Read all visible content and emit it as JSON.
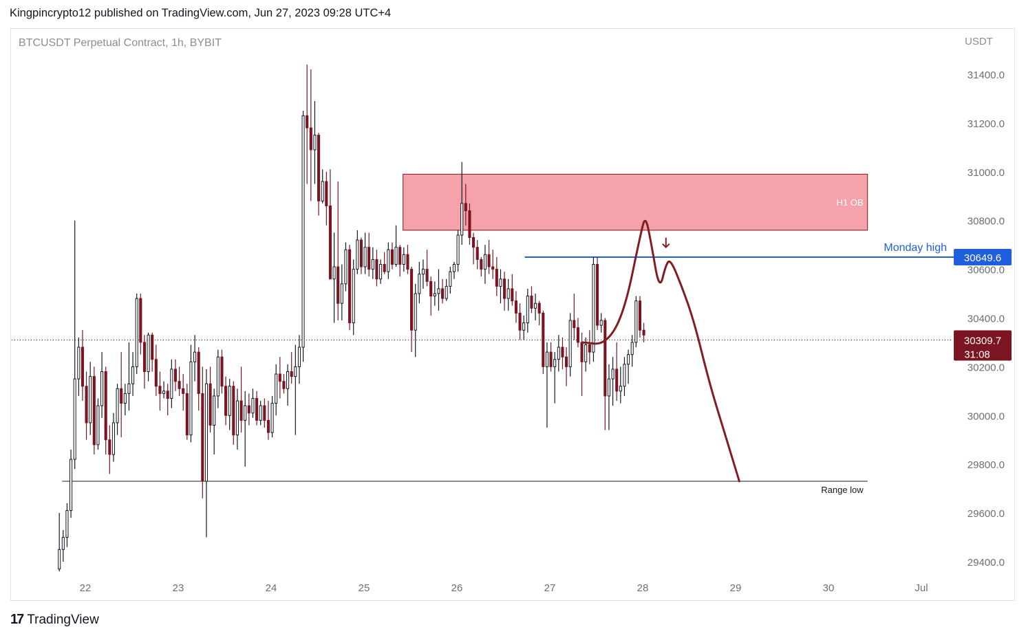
{
  "header": {
    "published_line": "Kingpincrypto12 published on TradingView.com, Jun 27, 2023 09:28 UTC+4"
  },
  "chart_title": "BTCUSDT Perpetual Contract, 1h, BYBIT",
  "currency": "USDT",
  "footer": {
    "logo_mark": "17",
    "brand": "TradingView"
  },
  "colors": {
    "up": "#131722",
    "down": "#7a1521",
    "ob_fill": "#f28b95",
    "ob_stroke": "#7a1521",
    "monday_line": "#1f5fdd",
    "price_badge": "#7a1521",
    "projection": "#7f1d22"
  },
  "chart_data": {
    "type": "candlestick",
    "title": "BTCUSDT Perpetual Contract, 1h, BYBIT",
    "ylim": [
      29300,
      31500
    ],
    "y_ticks": [
      29400,
      29600,
      29800,
      30000,
      30200,
      30400,
      30600,
      30800,
      31000,
      31200,
      31400
    ],
    "y_tick_labels": [
      "29400.0",
      "29600.0",
      "29800.0",
      "30000.0",
      "30200.0",
      "30400.0",
      "30600.0",
      "30800.0",
      "31000.0",
      "31200.0",
      "31400.0"
    ],
    "x_ticks": [
      {
        "t": 22,
        "label": "22"
      },
      {
        "t": 23,
        "label": "23"
      },
      {
        "t": 24,
        "label": "24"
      },
      {
        "t": 25,
        "label": "25"
      },
      {
        "t": 26,
        "label": "26"
      },
      {
        "t": 27,
        "label": "27"
      },
      {
        "t": 28,
        "label": "28"
      },
      {
        "t": 29,
        "label": "29"
      },
      {
        "t": 30,
        "label": "30"
      },
      {
        "t": 31,
        "label": "Jul"
      }
    ],
    "xlim_days": [
      21.3,
      31.2
    ],
    "candles_start_day": 21.72,
    "candle_interval_hours": 1,
    "ohlc": [
      [
        29370,
        29600,
        29360,
        29450
      ],
      [
        29450,
        29530,
        29400,
        29500
      ],
      [
        29500,
        29640,
        29460,
        29610
      ],
      [
        29610,
        29860,
        29580,
        29820
      ],
      [
        29820,
        30800,
        29780,
        30150
      ],
      [
        30150,
        30320,
        30080,
        30280
      ],
      [
        30280,
        30350,
        30060,
        30120
      ],
      [
        30120,
        30180,
        29900,
        29970
      ],
      [
        29970,
        30220,
        29920,
        30160
      ],
      [
        30160,
        30200,
        29840,
        29880
      ],
      [
        29880,
        30070,
        29860,
        30040
      ],
      [
        30040,
        30260,
        29990,
        30180
      ],
      [
        30180,
        30200,
        29840,
        29900
      ],
      [
        29900,
        29960,
        29760,
        29840
      ],
      [
        29840,
        30010,
        29810,
        29970
      ],
      [
        29970,
        30130,
        29920,
        30110
      ],
      [
        30110,
        30260,
        29910,
        30050
      ],
      [
        30050,
        30130,
        30000,
        30090
      ],
      [
        30090,
        30300,
        30020,
        30130
      ],
      [
        30130,
        30260,
        30080,
        30200
      ],
      [
        30200,
        30500,
        30170,
        30480
      ],
      [
        30480,
        30500,
        30250,
        30300
      ],
      [
        30300,
        30330,
        30110,
        30180
      ],
      [
        30180,
        30340,
        30140,
        30330
      ],
      [
        30330,
        30340,
        30180,
        30230
      ],
      [
        30230,
        30290,
        30080,
        30120
      ],
      [
        30120,
        30180,
        30020,
        30090
      ],
      [
        30090,
        30140,
        30070,
        30100
      ],
      [
        30100,
        30130,
        30000,
        30070
      ],
      [
        30070,
        30230,
        30030,
        30190
      ],
      [
        30190,
        30230,
        30100,
        30140
      ],
      [
        30140,
        30200,
        30080,
        30110
      ],
      [
        30110,
        30170,
        30020,
        30090
      ],
      [
        30090,
        30130,
        29900,
        29920
      ],
      [
        29920,
        30290,
        29890,
        30220
      ],
      [
        30220,
        30330,
        30140,
        30260
      ],
      [
        30260,
        30280,
        30020,
        30090
      ],
      [
        30090,
        30200,
        29660,
        29730
      ],
      [
        29730,
        30190,
        29500,
        30130
      ],
      [
        30130,
        30200,
        29930,
        29960
      ],
      [
        29960,
        30110,
        29840,
        30080
      ],
      [
        30080,
        30270,
        30030,
        30240
      ],
      [
        30240,
        30270,
        30090,
        30120
      ],
      [
        30120,
        30160,
        29960,
        30000
      ],
      [
        30000,
        30150,
        29940,
        30120
      ],
      [
        30120,
        30140,
        29880,
        29920
      ],
      [
        29920,
        30110,
        29860,
        30060
      ],
      [
        30060,
        30200,
        29930,
        29980
      ],
      [
        29980,
        30100,
        29790,
        30040
      ],
      [
        30040,
        30090,
        29960,
        30010
      ],
      [
        30010,
        30110,
        29990,
        30070
      ],
      [
        30070,
        30100,
        29960,
        29980
      ],
      [
        29980,
        30060,
        29960,
        30040
      ],
      [
        30040,
        30070,
        29950,
        29980
      ],
      [
        29980,
        30060,
        29900,
        29930
      ],
      [
        29930,
        30080,
        29910,
        30050
      ],
      [
        30050,
        30210,
        30000,
        30170
      ],
      [
        30170,
        30240,
        30070,
        30140
      ],
      [
        30140,
        30170,
        30090,
        30110
      ],
      [
        30110,
        30210,
        30040,
        30180
      ],
      [
        30180,
        30260,
        30130,
        30160
      ],
      [
        30160,
        30290,
        29920,
        30200
      ],
      [
        30200,
        30330,
        30130,
        30280
      ],
      [
        30280,
        31250,
        30220,
        31230
      ],
      [
        31230,
        31440,
        30950,
        31180
      ],
      [
        31180,
        31420,
        30880,
        31090
      ],
      [
        31090,
        31290,
        30950,
        31150
      ],
      [
        31150,
        31160,
        30820,
        30880
      ],
      [
        30880,
        31010,
        30870,
        30960
      ],
      [
        30960,
        31000,
        30780,
        30860
      ],
      [
        30860,
        31010,
        30570,
        30560
      ],
      [
        30560,
        30750,
        30380,
        30610
      ],
      [
        30610,
        30960,
        30390,
        30460
      ],
      [
        30460,
        30620,
        30390,
        30540
      ],
      [
        30540,
        30710,
        30510,
        30680
      ],
      [
        30680,
        30700,
        30350,
        30380
      ],
      [
        30380,
        30640,
        30330,
        30600
      ],
      [
        30600,
        30760,
        30580,
        30720
      ],
      [
        30720,
        30730,
        30580,
        30610
      ],
      [
        30610,
        30750,
        30580,
        30690
      ],
      [
        30690,
        30750,
        30570,
        30600
      ],
      [
        30600,
        30690,
        30560,
        30640
      ],
      [
        30640,
        30680,
        30530,
        30560
      ],
      [
        30560,
        30640,
        30540,
        30620
      ],
      [
        30620,
        30670,
        30580,
        30590
      ],
      [
        30590,
        30710,
        30560,
        30680
      ],
      [
        30680,
        30710,
        30600,
        30620
      ],
      [
        30620,
        30780,
        30610,
        30690
      ],
      [
        30690,
        30700,
        30570,
        30620
      ],
      [
        30620,
        30690,
        30590,
        30660
      ],
      [
        30660,
        30700,
        30580,
        30600
      ],
      [
        30600,
        30610,
        30260,
        30350
      ],
      [
        30350,
        30540,
        30240,
        30500
      ],
      [
        30500,
        30630,
        30460,
        30580
      ],
      [
        30580,
        30640,
        30520,
        30600
      ],
      [
        30600,
        30680,
        30530,
        30550
      ],
      [
        30550,
        30570,
        30410,
        30490
      ],
      [
        30490,
        30550,
        30450,
        30500
      ],
      [
        30500,
        30600,
        30430,
        30520
      ],
      [
        30520,
        30560,
        30460,
        30480
      ],
      [
        30480,
        30560,
        30470,
        30530
      ],
      [
        30530,
        30610,
        30500,
        30590
      ],
      [
        30590,
        30630,
        30560,
        30620
      ],
      [
        30620,
        30760,
        30590,
        30740
      ],
      [
        30740,
        31040,
        30700,
        30870
      ],
      [
        30870,
        30950,
        30780,
        30840
      ],
      [
        30840,
        30870,
        30700,
        30730
      ],
      [
        30730,
        30750,
        30620,
        30690
      ],
      [
        30690,
        30720,
        30600,
        30640
      ],
      [
        30640,
        30650,
        30570,
        30600
      ],
      [
        30600,
        30700,
        30540,
        30660
      ],
      [
        30660,
        30720,
        30580,
        30610
      ],
      [
        30610,
        30680,
        30560,
        30600
      ],
      [
        30600,
        30650,
        30490,
        30530
      ],
      [
        30530,
        30600,
        30460,
        30560
      ],
      [
        30560,
        30590,
        30430,
        30480
      ],
      [
        30480,
        30560,
        30430,
        30520
      ],
      [
        30520,
        30580,
        30450,
        30470
      ],
      [
        30470,
        30510,
        30380,
        30420
      ],
      [
        30420,
        30460,
        30310,
        30350
      ],
      [
        30350,
        30410,
        30310,
        30380
      ],
      [
        30380,
        30520,
        30340,
        30490
      ],
      [
        30490,
        30530,
        30420,
        30440
      ],
      [
        30440,
        30500,
        30390,
        30460
      ],
      [
        30460,
        30470,
        30370,
        30420
      ],
      [
        30420,
        30430,
        30170,
        30200
      ],
      [
        30200,
        30300,
        29950,
        30260
      ],
      [
        30260,
        30300,
        30180,
        30200
      ],
      [
        30200,
        30260,
        30050,
        30230
      ],
      [
        30230,
        30330,
        30180,
        30280
      ],
      [
        30280,
        30320,
        30190,
        30240
      ],
      [
        30240,
        30280,
        30120,
        30200
      ],
      [
        30200,
        30420,
        30160,
        30390
      ],
      [
        30390,
        30500,
        30310,
        30360
      ],
      [
        30360,
        30400,
        30280,
        30300
      ],
      [
        30300,
        30340,
        30080,
        30220
      ],
      [
        30220,
        30320,
        30180,
        30290
      ],
      [
        30290,
        30350,
        30210,
        30260
      ],
      [
        30260,
        30650,
        30220,
        30620
      ],
      [
        30620,
        30650,
        30350,
        30370
      ],
      [
        30370,
        30420,
        30340,
        30390
      ],
      [
        30390,
        30400,
        29940,
        30080
      ],
      [
        30080,
        30210,
        29940,
        30150
      ],
      [
        30150,
        30240,
        30040,
        30190
      ],
      [
        30190,
        30300,
        30060,
        30100
      ],
      [
        30100,
        30200,
        30050,
        30120
      ],
      [
        30120,
        30240,
        30080,
        30210
      ],
      [
        30210,
        30270,
        30130,
        30250
      ],
      [
        30250,
        30330,
        30200,
        30300
      ],
      [
        30300,
        30490,
        30280,
        30470
      ],
      [
        30470,
        30490,
        30320,
        30350
      ],
      [
        30350,
        30380,
        30300,
        30330
      ]
    ],
    "last_price": 30309.7,
    "annotations": [
      {
        "type": "zone",
        "label": "H1 OB",
        "y1": 30760,
        "y2": 30990,
        "x_start_day": 25.42,
        "x_end_day": 30.42
      },
      {
        "type": "hline",
        "label": "Monday high",
        "y": 30649.6,
        "badge": "30649.6",
        "x_start_day": 26.73
      },
      {
        "type": "hline",
        "label": "Range low",
        "y": 29730,
        "x_start_day": 21.75,
        "x_end_day": 30.42
      },
      {
        "type": "hline_dotted",
        "label": "30309.7",
        "y": 30309.7,
        "countdown": "31:08"
      },
      {
        "type": "arrow_down",
        "y": 30690,
        "x_day": 28.25
      },
      {
        "type": "projection_path",
        "points": [
          [
            27.35,
            30300
          ],
          [
            27.6,
            30290
          ],
          [
            27.8,
            30420
          ],
          [
            27.98,
            30750
          ],
          [
            28.03,
            30820
          ],
          [
            28.09,
            30710
          ],
          [
            28.18,
            30510
          ],
          [
            28.25,
            30620
          ],
          [
            28.3,
            30640
          ],
          [
            28.42,
            30530
          ],
          [
            28.55,
            30390
          ],
          [
            28.72,
            30130
          ],
          [
            28.88,
            29930
          ],
          [
            29.04,
            29730
          ]
        ]
      }
    ]
  }
}
